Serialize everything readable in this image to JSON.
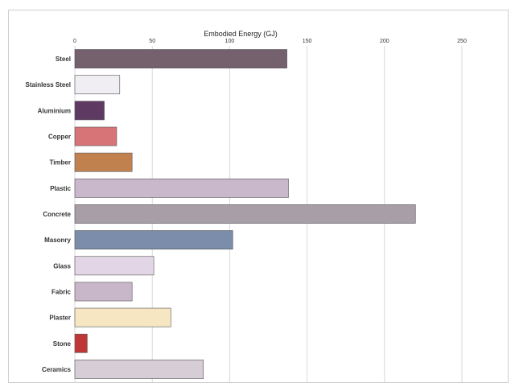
{
  "chart_data": {
    "type": "bar",
    "orientation": "horizontal",
    "title": "Embodied Energy (GJ)",
    "xlabel": "",
    "ylabel": "",
    "xlim": [
      0,
      250
    ],
    "xticks": [
      0,
      50,
      100,
      150,
      200,
      250
    ],
    "grid": true,
    "legend": "none",
    "categories": [
      "Steel",
      "Stainless Steel",
      "Aluminium",
      "Copper",
      "Timber",
      "Plastic",
      "Concrete",
      "Masonry",
      "Glass",
      "Fabric",
      "Plaster",
      "Stone",
      "Ceramics"
    ],
    "values": [
      137,
      29,
      19,
      27,
      37,
      138,
      220,
      102,
      51,
      37,
      62,
      8,
      83
    ],
    "colors": [
      "#75606e",
      "#f0eef2",
      "#5e3a62",
      "#d67478",
      "#c1814f",
      "#c9b7cc",
      "#a89ea8",
      "#7b8daa",
      "#e2d6e6",
      "#c8b6c9",
      "#f6e6c2",
      "#bf3636",
      "#d6cdd6"
    ]
  }
}
